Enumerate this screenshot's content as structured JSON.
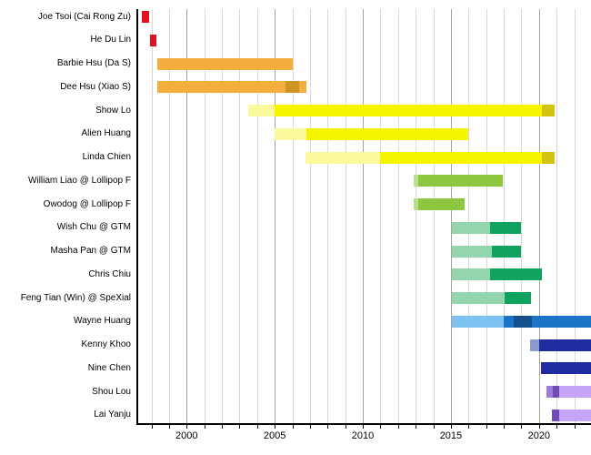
{
  "chart_data": {
    "type": "gantt",
    "title": "",
    "x_domain": [
      1997.2,
      2022.95
    ],
    "x_ticks": [
      "2000",
      "2005",
      "2010",
      "2015",
      "2020"
    ],
    "x_tick_years": [
      2000,
      2005,
      2010,
      2015,
      2020
    ],
    "grid": {
      "year_start": 1998,
      "year_end": 2022,
      "major_every": 5,
      "on": true
    },
    "legend": "none",
    "palette": {
      "red": "#E3101F",
      "orange": "#F4AE3D",
      "orange_dark": "#CE9426",
      "yellow_pale": "#FAFA9C",
      "yellow": "#F5F500",
      "yellow_dark": "#D3C414",
      "green_light": "#BCDF8E",
      "green": "#8DC63F",
      "mint": "#93D5AE",
      "seagreen": "#10A35F",
      "skyblue": "#7CC3F2",
      "blue": "#1B74C8",
      "blue_dark": "#124F8C",
      "slate": "#8E9ACF",
      "navy": "#1F2B9E",
      "purple_med": "#9C7CE0",
      "purple_dark": "#6F4CB8",
      "lavender": "#C5A5F5"
    },
    "rows": [
      {
        "label": "Joe Tsoi (Cai Rong Zu)",
        "segments": [
          {
            "start": 1997.45,
            "end": 1997.85,
            "color": "red"
          }
        ]
      },
      {
        "label": "He Du Lin",
        "segments": [
          {
            "start": 1997.9,
            "end": 1998.3,
            "color": "red"
          }
        ]
      },
      {
        "label": "Barbie Hsu (Da S)",
        "segments": [
          {
            "start": 1998.35,
            "end": 2006.0,
            "color": "orange"
          }
        ]
      },
      {
        "label": "Dee Hsu (Xiao S)",
        "segments": [
          {
            "start": 1998.35,
            "end": 2005.6,
            "color": "orange"
          },
          {
            "start": 2005.6,
            "end": 2006.4,
            "color": "orange_dark"
          },
          {
            "start": 2006.4,
            "end": 2006.8,
            "color": "orange"
          }
        ]
      },
      {
        "label": "Show Lo",
        "segments": [
          {
            "start": 2003.5,
            "end": 2005.0,
            "color": "yellow_pale"
          },
          {
            "start": 2005.0,
            "end": 2020.15,
            "color": "yellow"
          },
          {
            "start": 2020.15,
            "end": 2020.9,
            "color": "yellow_dark"
          }
        ]
      },
      {
        "label": "Alien Huang",
        "segments": [
          {
            "start": 2005.0,
            "end": 2006.8,
            "color": "yellow_pale"
          },
          {
            "start": 2006.8,
            "end": 2016.0,
            "color": "yellow"
          }
        ]
      },
      {
        "label": "Linda Chien",
        "segments": [
          {
            "start": 2006.75,
            "end": 2011.0,
            "color": "yellow_pale"
          },
          {
            "start": 2011.0,
            "end": 2020.15,
            "color": "yellow"
          },
          {
            "start": 2020.15,
            "end": 2020.9,
            "color": "yellow_dark"
          }
        ]
      },
      {
        "label": "William Liao @ Lollipop F",
        "segments": [
          {
            "start": 2012.9,
            "end": 2013.15,
            "color": "green_light"
          },
          {
            "start": 2013.15,
            "end": 2017.95,
            "color": "green"
          }
        ]
      },
      {
        "label": "Owodog @ Lollipop F",
        "segments": [
          {
            "start": 2012.9,
            "end": 2013.15,
            "color": "green_light"
          },
          {
            "start": 2013.15,
            "end": 2015.8,
            "color": "green"
          }
        ]
      },
      {
        "label": "Wish Chu @ GTM",
        "segments": [
          {
            "start": 2015.05,
            "end": 2017.2,
            "color": "mint"
          },
          {
            "start": 2017.2,
            "end": 2019.0,
            "color": "seagreen"
          }
        ]
      },
      {
        "label": "Masha Pan @ GTM",
        "segments": [
          {
            "start": 2015.05,
            "end": 2017.3,
            "color": "mint"
          },
          {
            "start": 2017.3,
            "end": 2019.0,
            "color": "seagreen"
          }
        ]
      },
      {
        "label": "Chris Chiu",
        "segments": [
          {
            "start": 2015.05,
            "end": 2017.2,
            "color": "mint"
          },
          {
            "start": 2017.2,
            "end": 2020.15,
            "color": "seagreen"
          }
        ]
      },
      {
        "label": "Feng Tian (Win) @ SpeXial",
        "segments": [
          {
            "start": 2015.05,
            "end": 2018.05,
            "color": "mint"
          },
          {
            "start": 2018.05,
            "end": 2019.55,
            "color": "seagreen"
          }
        ]
      },
      {
        "label": "Wayne Huang",
        "segments": [
          {
            "start": 2015.05,
            "end": 2018.0,
            "color": "skyblue"
          },
          {
            "start": 2018.0,
            "end": 2018.55,
            "color": "blue"
          },
          {
            "start": 2018.55,
            "end": 2019.6,
            "color": "blue_dark"
          },
          {
            "start": 2019.6,
            "end": 2022.95,
            "color": "blue"
          }
        ]
      },
      {
        "label": "Kenny Khoo",
        "segments": [
          {
            "start": 2019.5,
            "end": 2020.0,
            "color": "slate"
          },
          {
            "start": 2020.0,
            "end": 2022.95,
            "color": "navy"
          }
        ]
      },
      {
        "label": "Nine Chen",
        "segments": [
          {
            "start": 2020.1,
            "end": 2022.95,
            "color": "navy"
          }
        ]
      },
      {
        "label": "Shou Lou",
        "segments": [
          {
            "start": 2020.4,
            "end": 2020.8,
            "color": "purple_med"
          },
          {
            "start": 2020.8,
            "end": 2021.12,
            "color": "purple_dark"
          },
          {
            "start": 2021.12,
            "end": 2022.95,
            "color": "lavender"
          }
        ]
      },
      {
        "label": "Lai Yanju",
        "segments": [
          {
            "start": 2020.75,
            "end": 2021.12,
            "color": "purple_dark"
          },
          {
            "start": 2021.12,
            "end": 2022.95,
            "color": "lavender"
          }
        ]
      }
    ]
  }
}
